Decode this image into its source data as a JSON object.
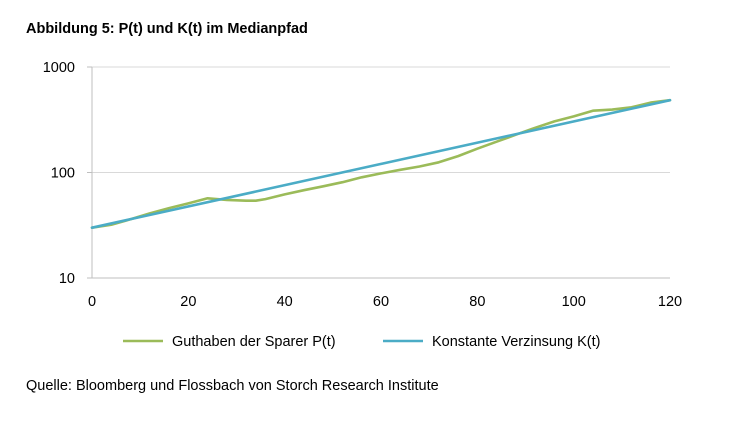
{
  "figure": {
    "title": "Abbildung 5: P(t) und K(t) im Medianpfad",
    "source": "Quelle: Bloomberg und Flossbach von Storch Research Institute"
  },
  "chart_data": {
    "type": "line",
    "title": "Abbildung 5: P(t) und K(t) im Medianpfad",
    "xlabel": "",
    "ylabel": "",
    "xlim": [
      0,
      120
    ],
    "ylim": [
      10,
      1000
    ],
    "yscale": "log",
    "xticks": [
      "0",
      "20",
      "40",
      "60",
      "80",
      "100",
      "120"
    ],
    "yticks": [
      "10",
      "100",
      "1000"
    ],
    "grid": "horizontal",
    "legend_position": "bottom",
    "series": [
      {
        "name": "Guthaben der Sparer P(t)",
        "color": "#9bbb59",
        "x": [
          0,
          4,
          8,
          12,
          16,
          20,
          24,
          28,
          32,
          34,
          36,
          40,
          44,
          48,
          52,
          56,
          60,
          64,
          68,
          72,
          76,
          80,
          84,
          88,
          92,
          96,
          100,
          104,
          108,
          112,
          116,
          120
        ],
        "y": [
          30,
          32,
          36,
          41,
          46,
          51,
          57,
          55,
          54,
          54,
          56,
          62,
          68,
          74,
          81,
          90,
          98,
          106,
          114,
          125,
          143,
          168,
          196,
          228,
          265,
          305,
          340,
          385,
          395,
          415,
          460,
          485
        ]
      },
      {
        "name": "Konstante Verzinsung K(t)",
        "color": "#4bacc6",
        "x": [
          0,
          120
        ],
        "y": [
          30,
          485
        ]
      }
    ]
  }
}
